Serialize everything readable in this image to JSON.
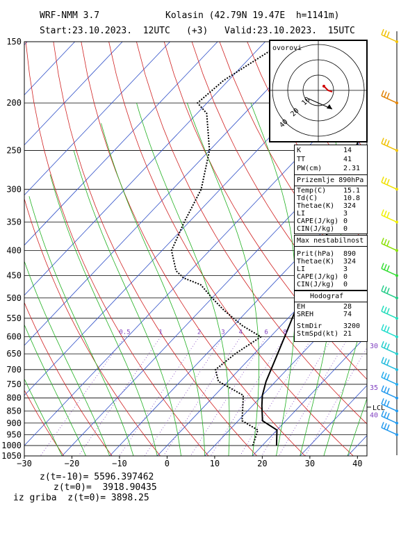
{
  "header": {
    "model": "WRF-NMM 3.7",
    "station": "Kolasin (42.79N 19.47E  h=1141m)",
    "start": "Start:23.10.2023.  12UTC",
    "offset": "(+3)",
    "valid": "Valid:23.10.2023.  15UTC"
  },
  "footer": {
    "z1": "z(t=-10)= 5596.397462",
    "z2": "z(t=0)=  3918.90435",
    "z3": "iz griba  z(t=0)= 3898.25"
  },
  "hodo": {
    "label": "ovorovi",
    "ring_labels": [
      "10",
      "20",
      "30",
      "40"
    ]
  },
  "indices": [
    {
      "label": "K",
      "value": "14"
    },
    {
      "label": "TT",
      "value": "41"
    },
    {
      "label": "PW(cm)",
      "value": "2.31"
    }
  ],
  "surface": {
    "title": "Prizemlje 890hPa",
    "rows": [
      {
        "label": "Temp(C)",
        "value": "15.1"
      },
      {
        "label": "Td(C)",
        "value": "10.8"
      },
      {
        "label": "Thetae(K)",
        "value": "324"
      },
      {
        "label": "LI",
        "value": "3"
      },
      {
        "label": "CAPE(J/kg)",
        "value": "0"
      },
      {
        "label": "CIN(J/kg)",
        "value": "0"
      }
    ]
  },
  "maxinst": {
    "title": "Max nestabilnost",
    "rows": [
      {
        "label": "Prit(hPa)",
        "value": "890"
      },
      {
        "label": "Thetae(K)",
        "value": "324"
      },
      {
        "label": "LI",
        "value": "3"
      },
      {
        "label": "CAPE(J/kg)",
        "value": "0"
      },
      {
        "label": "CIN(J/kg)",
        "value": "0"
      }
    ]
  },
  "hodograf": {
    "title": "Hodograf",
    "rows": [
      {
        "label": "EH",
        "value": "28"
      },
      {
        "label": "SREH",
        "value": "74"
      },
      {
        "label": "StmDir",
        "value": "3200"
      },
      {
        "label": "StmSpd(kt)",
        "value": "21"
      }
    ]
  },
  "chart_data": {
    "type": "line",
    "title": "",
    "xlabel": "",
    "ylabel": "",
    "x_ticks": [
      -30,
      -20,
      -10,
      0,
      10,
      20,
      30,
      40
    ],
    "x_tick_labels": [
      "−30",
      "−20",
      "−10",
      "0",
      "10",
      "20",
      "30",
      "40"
    ],
    "p_ticks": [
      150,
      200,
      250,
      300,
      350,
      400,
      450,
      500,
      550,
      600,
      650,
      700,
      750,
      800,
      850,
      900,
      950,
      1000,
      1050
    ],
    "xlim": [
      -30,
      42
    ],
    "ylim_hpa": [
      1050,
      150
    ],
    "mixing_ratio_labels": [
      "0.5",
      "1",
      "2",
      "3",
      "4",
      "6",
      "8"
    ],
    "lcl_label": "LCL",
    "lcl_pressure": 835,
    "right_labels": [
      {
        "text": "30",
        "p": 625
      },
      {
        "text": "35",
        "p": 760
      },
      {
        "text": "40",
        "p": 865
      }
    ],
    "series": [
      {
        "name": "",
        "color": "#000000",
        "style": "solid",
        "points": [
          [
            23,
            1000
          ],
          [
            20,
            930
          ],
          [
            15.1,
            890
          ],
          [
            12,
            830
          ],
          [
            10,
            790
          ],
          [
            8,
            740
          ],
          [
            6,
            680
          ],
          [
            3,
            600
          ],
          [
            0,
            530
          ],
          [
            -3,
            460
          ],
          [
            -7,
            400
          ],
          [
            -11,
            330
          ],
          [
            -16,
            270
          ],
          [
            -20,
            245
          ],
          [
            -24,
            210
          ],
          [
            -25,
            200
          ],
          [
            -22,
            150
          ]
        ]
      },
      {
        "name": "",
        "color": "#000000",
        "style": "dotted",
        "points": [
          [
            18,
            1000
          ],
          [
            16,
            930
          ],
          [
            10.8,
            890
          ],
          [
            8,
            830
          ],
          [
            6,
            790
          ],
          [
            -2,
            740
          ],
          [
            -5,
            700
          ],
          [
            -4,
            650
          ],
          [
            -2,
            600
          ],
          [
            -8,
            570
          ],
          [
            -15,
            530
          ],
          [
            -20,
            500
          ],
          [
            -25,
            470
          ],
          [
            -30,
            455
          ],
          [
            -33,
            440
          ],
          [
            -38,
            400
          ],
          [
            -41,
            350
          ],
          [
            -44,
            300
          ],
          [
            -50,
            250
          ],
          [
            -58,
            210
          ],
          [
            -62,
            200
          ],
          [
            -61,
            180
          ],
          [
            -56,
            150
          ]
        ]
      }
    ],
    "wind_barbs": [
      {
        "p": 150,
        "color": "#f0c000"
      },
      {
        "p": 200,
        "color": "#e08000"
      },
      {
        "p": 250,
        "color": "#f0c000"
      },
      {
        "p": 300,
        "color": "#f0e000"
      },
      {
        "p": 350,
        "color": "#f0f000"
      },
      {
        "p": 400,
        "color": "#88e000"
      },
      {
        "p": 450,
        "color": "#33dd33"
      },
      {
        "p": 500,
        "color": "#22cc88"
      },
      {
        "p": 550,
        "color": "#22ddbb"
      },
      {
        "p": 600,
        "color": "#22ddcc"
      },
      {
        "p": 650,
        "color": "#22cccc"
      },
      {
        "p": 700,
        "color": "#22bbdd"
      },
      {
        "p": 750,
        "color": "#22aaee"
      },
      {
        "p": 800,
        "color": "#2299ee"
      },
      {
        "p": 850,
        "color": "#2299ee"
      },
      {
        "p": 900,
        "color": "#2299ee"
      },
      {
        "p": 950,
        "color": "#2299ee"
      }
    ],
    "grid": true
  }
}
